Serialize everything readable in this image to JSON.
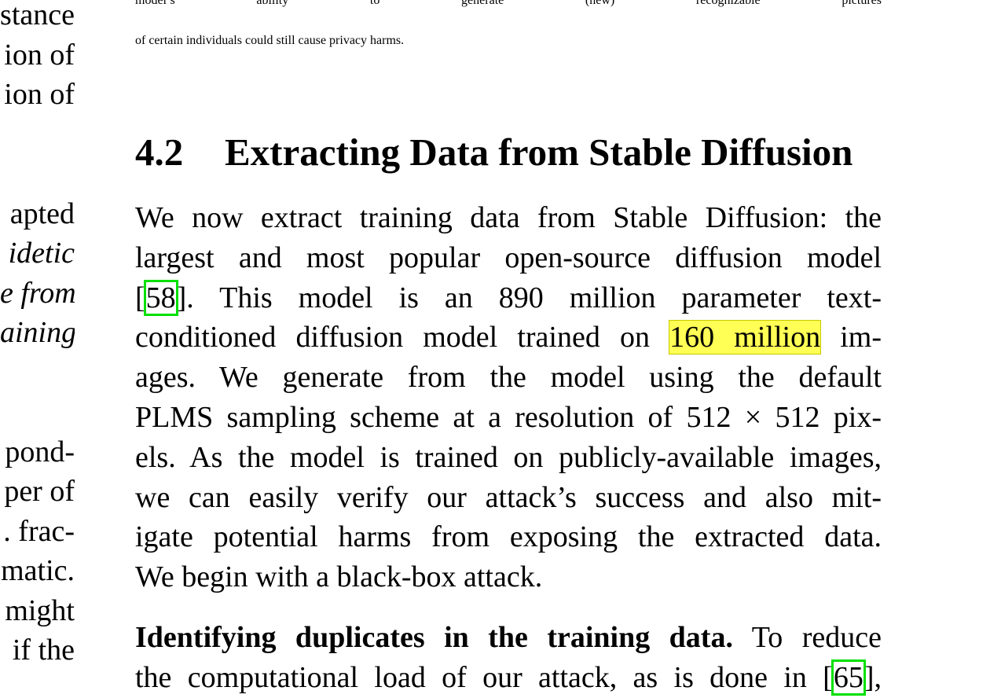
{
  "left_column_fragments": [
    "stance",
    "ion of",
    "ion of",
    "",
    "",
    "apted",
    "idetic",
    "e from",
    "aining",
    "",
    "",
    "pond-",
    "per of",
    ". frac-",
    "matic.",
    "might",
    "if the"
  ],
  "left_column_italic": [
    false,
    false,
    false,
    false,
    false,
    false,
    true,
    true,
    true,
    false,
    false,
    false,
    false,
    false,
    false,
    false,
    false
  ],
  "top_paragraph": {
    "lines": [
      "model’s ability to generate (new) recognizable pictures",
      "of certain individuals could still cause privacy harms."
    ]
  },
  "section": {
    "number": "4.2",
    "title": "Extracting Data from Stable Diffusion"
  },
  "paragraph_main": {
    "line1": "We now extract training data from Stable Diffusion: the",
    "line2": "largest and most popular open-source diffusion model",
    "line3_open": "[",
    "line3_cite": "58",
    "line3_rest": "].   This model is an 890 million parameter text-",
    "line4_pre": "conditioned diffusion model trained on ",
    "line4_highlight": "160 million",
    "line4_post": " im-",
    "line5": "ages.   We generate from the model using the default",
    "line6": "PLMS sampling scheme at a resolution of 512 × 512 pix-",
    "line7": "els. As the model is trained on publicly-available images,",
    "line8": "we can easily verify our attack’s success and also mit-",
    "line9": "igate potential harms from exposing the extracted data.",
    "line10": "We begin with a black-box attack."
  },
  "paragraph_next": {
    "bold_lead": "Identifying duplicates in the training data.",
    "lead_rest": "  To reduce",
    "line2_pre": "the computational load of our attack, as is done in [",
    "line2_cite": "65",
    "line2_post": "],"
  },
  "colors": {
    "citation_box": "#00e000",
    "highlight": "#ffff55"
  }
}
